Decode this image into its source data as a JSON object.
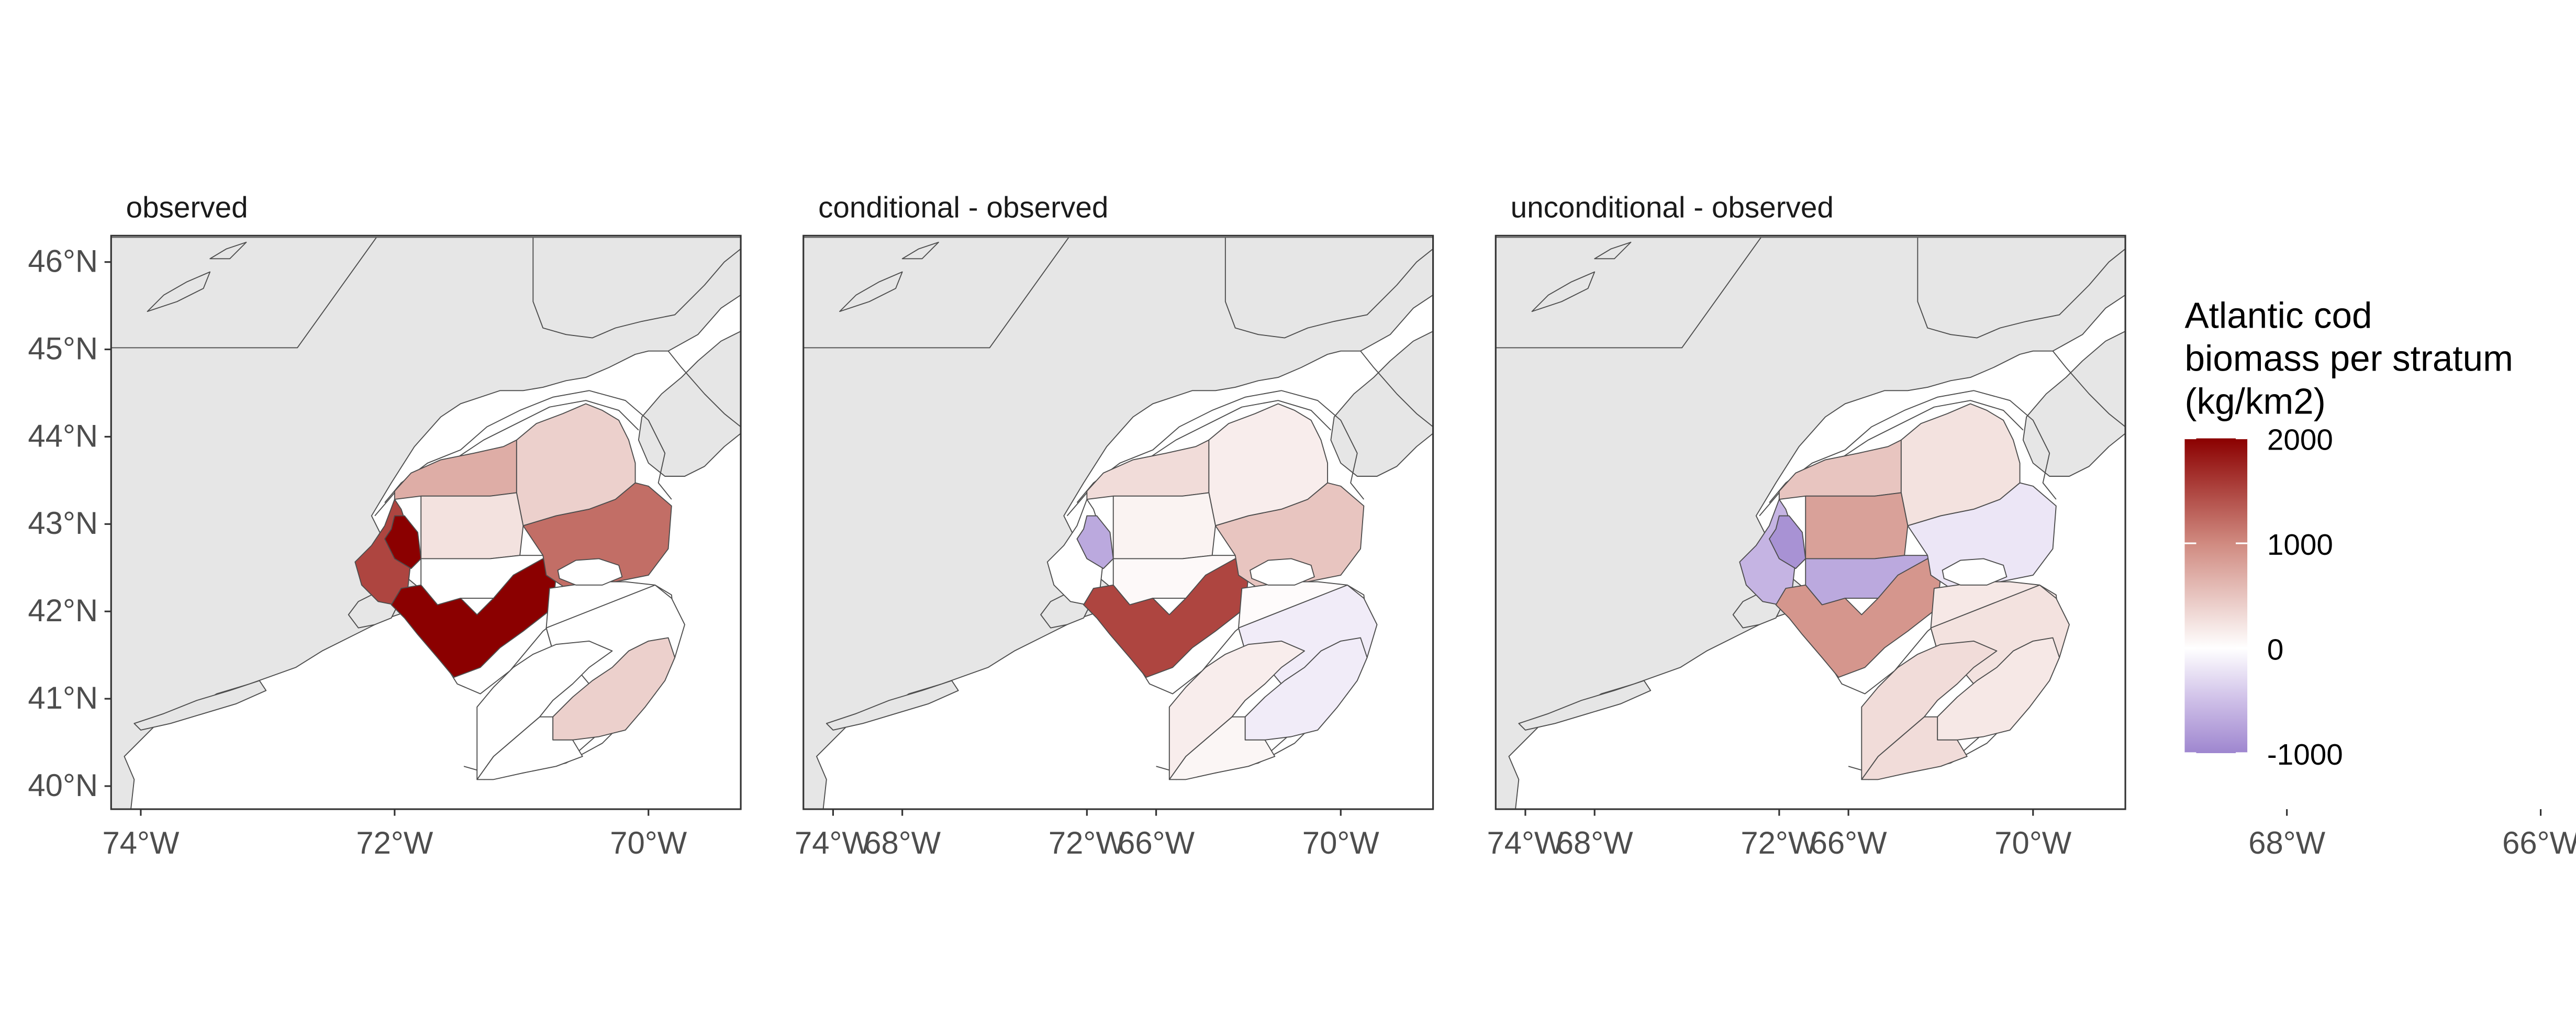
{
  "colors": {
    "land": "#e6e6e6",
    "water": "#ffffff",
    "outline": "#4d4d4d",
    "scale_high": "#8b0000",
    "scale_mid": "#ffffff",
    "scale_low": "#9e86cf"
  },
  "axes": {
    "lon_ticks": [
      "74°W",
      "72°W",
      "70°W",
      "68°W",
      "66°W"
    ],
    "lat_ticks": [
      "46°N",
      "45°N",
      "44°N",
      "43°N",
      "42°N",
      "41°N",
      "40°N"
    ]
  },
  "legend": {
    "title_lines": [
      "Atlantic cod",
      "biomass per stratum",
      "(kg/km2)"
    ],
    "labels": [
      "2000",
      "1000",
      "0",
      "-1000"
    ],
    "breaks": [
      2000,
      1000,
      0,
      -1000
    ],
    "range": [
      -1000,
      2000
    ]
  },
  "panels": [
    {
      "title": "observed",
      "values": {
        "s1": 700,
        "s2": 400,
        "s3": 1500,
        "s4": 250,
        "s5": 2000,
        "s6": 0,
        "s7": 2000,
        "s8": 1200,
        "s9": 0,
        "s10": 0,
        "s11": 400,
        "s12": 0,
        "s13": 0
      }
    },
    {
      "title": "conditional - observed",
      "values": {
        "s1": 300,
        "s2": 150,
        "s3": 0,
        "s4": 100,
        "s5": -700,
        "s6": 50,
        "s7": 1500,
        "s8": 500,
        "s9": 30,
        "s10": -150,
        "s11": -150,
        "s12": 80,
        "s13": 150
      }
    },
    {
      "title": "unconditional - observed",
      "values": {
        "s1": 500,
        "s2": 250,
        "s3": -600,
        "s4": 800,
        "s5": -900,
        "s6": -700,
        "s7": 900,
        "s8": -200,
        "s9": 200,
        "s10": 250,
        "s11": 200,
        "s12": 300,
        "s13": 300
      }
    }
  ]
}
